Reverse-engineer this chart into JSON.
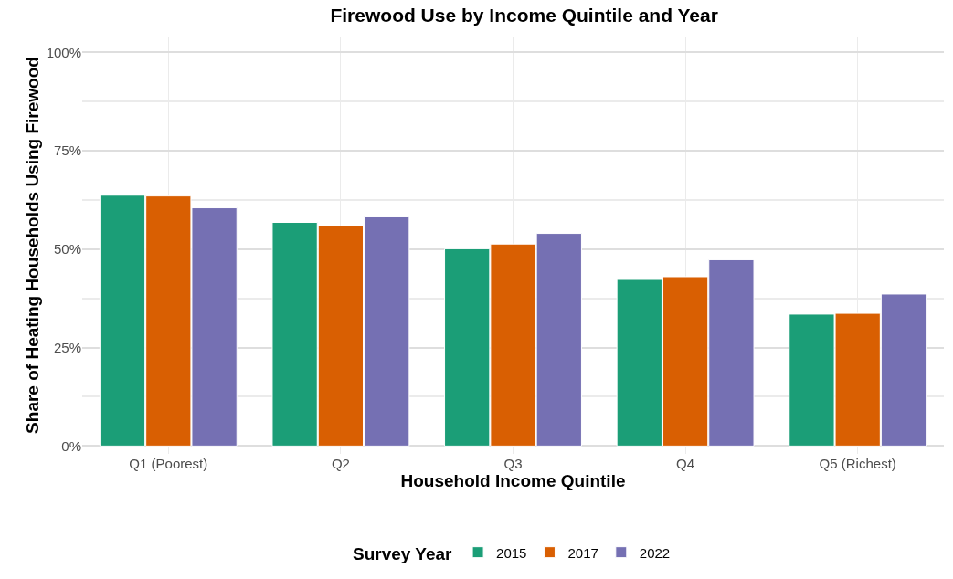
{
  "chart_data": {
    "type": "bar",
    "title": "Firewood Use by Income Quintile and Year",
    "xlabel": "Household Income Quintile",
    "ylabel": "Share of Heating Households Using Firewood",
    "legend_title": "Survey Year",
    "categories": [
      "Q1 (Poorest)",
      "Q2",
      "Q3",
      "Q4",
      "Q5 (Richest)"
    ],
    "series": [
      {
        "name": "2015",
        "color": "#1b9e77",
        "values": [
          63.7,
          56.8,
          50.1,
          42.3,
          33.5
        ]
      },
      {
        "name": "2017",
        "color": "#d95f02",
        "values": [
          63.5,
          55.9,
          51.3,
          43.0,
          33.7
        ]
      },
      {
        "name": "2022",
        "color": "#7570b3",
        "values": [
          60.5,
          58.2,
          54.0,
          47.3,
          38.6
        ]
      }
    ],
    "ylim": [
      -2,
      104
    ],
    "yticks": [
      {
        "value": 0,
        "label": "0%"
      },
      {
        "value": 25,
        "label": "25%"
      },
      {
        "value": 50,
        "label": "50%"
      },
      {
        "value": 75,
        "label": "75%"
      },
      {
        "value": 100,
        "label": "100%"
      }
    ],
    "grid": true,
    "legend": "bottom"
  }
}
